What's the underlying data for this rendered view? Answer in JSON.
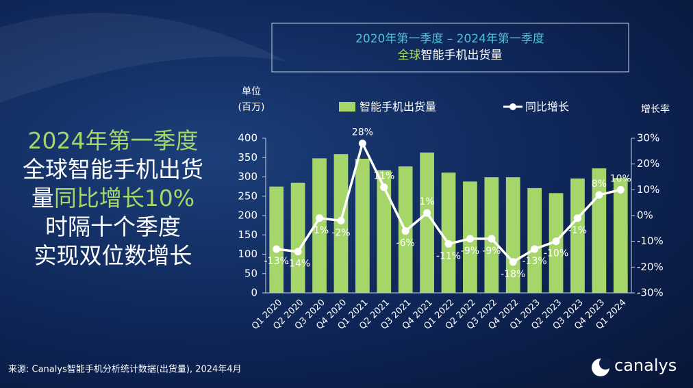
{
  "headline": [
    [
      {
        "text": "2024年第一季度",
        "highlight": true
      }
    ],
    [
      {
        "text": "全球智能手机出货",
        "highlight": false
      }
    ],
    [
      {
        "text": "量",
        "highlight": false
      },
      {
        "text": "同比增长10%",
        "highlight": true
      }
    ],
    [
      {
        "text": "时隔十个季度",
        "highlight": false
      }
    ],
    [
      {
        "text": "实现双位数增长",
        "highlight": false
      }
    ]
  ],
  "chart_data": {
    "type": "bar-line",
    "title": "2020年第一季度 – 2024年第一季度",
    "subtitle_highlight": "全球",
    "subtitle": "智能手机出货量",
    "ylabel": [
      "单位",
      "(百万)"
    ],
    "y2label": "增长率",
    "categories": [
      "Q1 2020",
      "Q2 2020",
      "Q3 2020",
      "Q4 2020",
      "Q1 2021",
      "Q2 2021",
      "Q3 2021",
      "Q4 2021",
      "Q1 2022",
      "Q2 2022",
      "Q3 2022",
      "Q4 2022",
      "Q1 2023",
      "Q2 2023",
      "Q3 2023",
      "Q4 2023",
      "Q1 2024"
    ],
    "series": [
      {
        "name": "智能手机出货量",
        "type": "bar",
        "color": "#a6d66a",
        "values": [
          275,
          285,
          348,
          359,
          347,
          317,
          327,
          363,
          311,
          288,
          299,
          299,
          271,
          258,
          296,
          322,
          297
        ]
      },
      {
        "name": "同比增长",
        "type": "line",
        "color": "#ffffff",
        "axis": "y2",
        "values": [
          -13,
          -14,
          -1,
          -2,
          28,
          11,
          -6,
          1,
          -11,
          -9,
          -9,
          -18,
          -13,
          -10,
          -1,
          8,
          10
        ],
        "value_labels": [
          "-13%",
          "-14%",
          "-1%",
          "-2%",
          "28%",
          "11%",
          "-6%",
          "1%",
          "-11%",
          "-9%",
          "-9%",
          "-18%",
          "-13%",
          "-10%",
          "-1%",
          "8%",
          "10%"
        ]
      }
    ],
    "ylim": [
      0,
      400
    ],
    "yticks": [
      0,
      50,
      100,
      150,
      200,
      250,
      300,
      350,
      400
    ],
    "y2lim": [
      -30,
      30
    ],
    "y2ticks": [
      {
        "value": -30,
        "label": "-30%"
      },
      {
        "value": -20,
        "label": "-20%"
      },
      {
        "value": -10,
        "label": "-10%"
      },
      {
        "value": 0,
        "label": "0%"
      },
      {
        "value": 10,
        "label": "10%"
      },
      {
        "value": 20,
        "label": "20%"
      },
      {
        "value": 30,
        "label": "30%"
      }
    ],
    "legend": true
  },
  "source": "来源: Canalys智能手机分析统计数据(出货量), 2024年4月",
  "logo": "canalys"
}
